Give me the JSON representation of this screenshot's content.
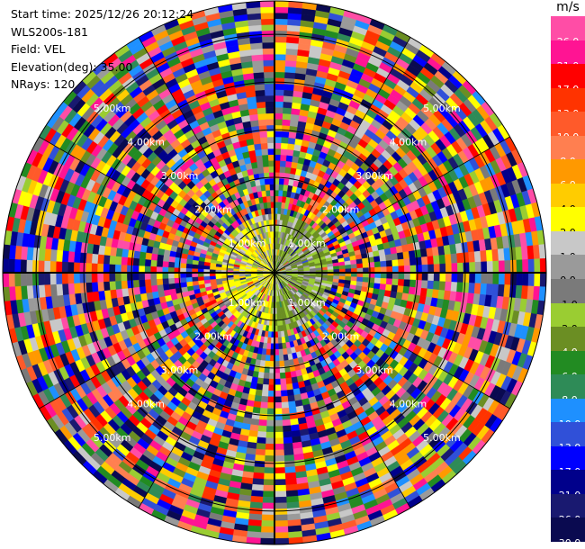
{
  "info": {
    "start_time": "Start time: 2025/12/26 20:12:24",
    "station": "WLS200s-181",
    "field": "Field: VEL",
    "elevation": "Elevation(deg): 35.00",
    "nrays": "NRays: 120"
  },
  "colorbar": {
    "unit": "m/s",
    "bins": [
      {
        "color": "#ff4da6",
        "label": "26.0"
      },
      {
        "color": "#ff1493",
        "label": "21.0"
      },
      {
        "color": "#ff0000",
        "label": "17.0"
      },
      {
        "color": "#ff3300",
        "label": "13.0"
      },
      {
        "color": "#ff5a2a",
        "label": "10.0"
      },
      {
        "color": "#ff7f50",
        "label": "8.0"
      },
      {
        "color": "#ff9900",
        "label": "6.0"
      },
      {
        "color": "#ffcc00",
        "label": "4.0"
      },
      {
        "color": "#ffff00",
        "label": "2.0"
      },
      {
        "color": "#c8c8c8",
        "label": "1.0"
      },
      {
        "color": "#9a9a9a",
        "label": "0.0"
      },
      {
        "color": "#7a7a7a",
        "label": "-1.0"
      },
      {
        "color": "#9acd32",
        "label": "-2.0"
      },
      {
        "color": "#6b8e23",
        "label": "-4.0"
      },
      {
        "color": "#228b22",
        "label": "-6.0"
      },
      {
        "color": "#2e8b57",
        "label": "-8.0"
      },
      {
        "color": "#1e90ff",
        "label": "-10.0"
      },
      {
        "color": "#3050d8",
        "label": "-13.0"
      },
      {
        "color": "#0000ff",
        "label": "-17.0"
      },
      {
        "color": "#00008b",
        "label": "-21.0"
      },
      {
        "color": "#191970",
        "label": "-26.0"
      },
      {
        "color": "#0a0a50",
        "label": "-30.0"
      }
    ]
  },
  "range_rings": {
    "labels": [
      "1.00km",
      "2.00km",
      "3.00km",
      "4.00km",
      "5.00km"
    ],
    "max_range_km": 5.7
  },
  "color_meaning": {
    "ring_line": "#ffffff",
    "spoke_line": "#000000"
  }
}
